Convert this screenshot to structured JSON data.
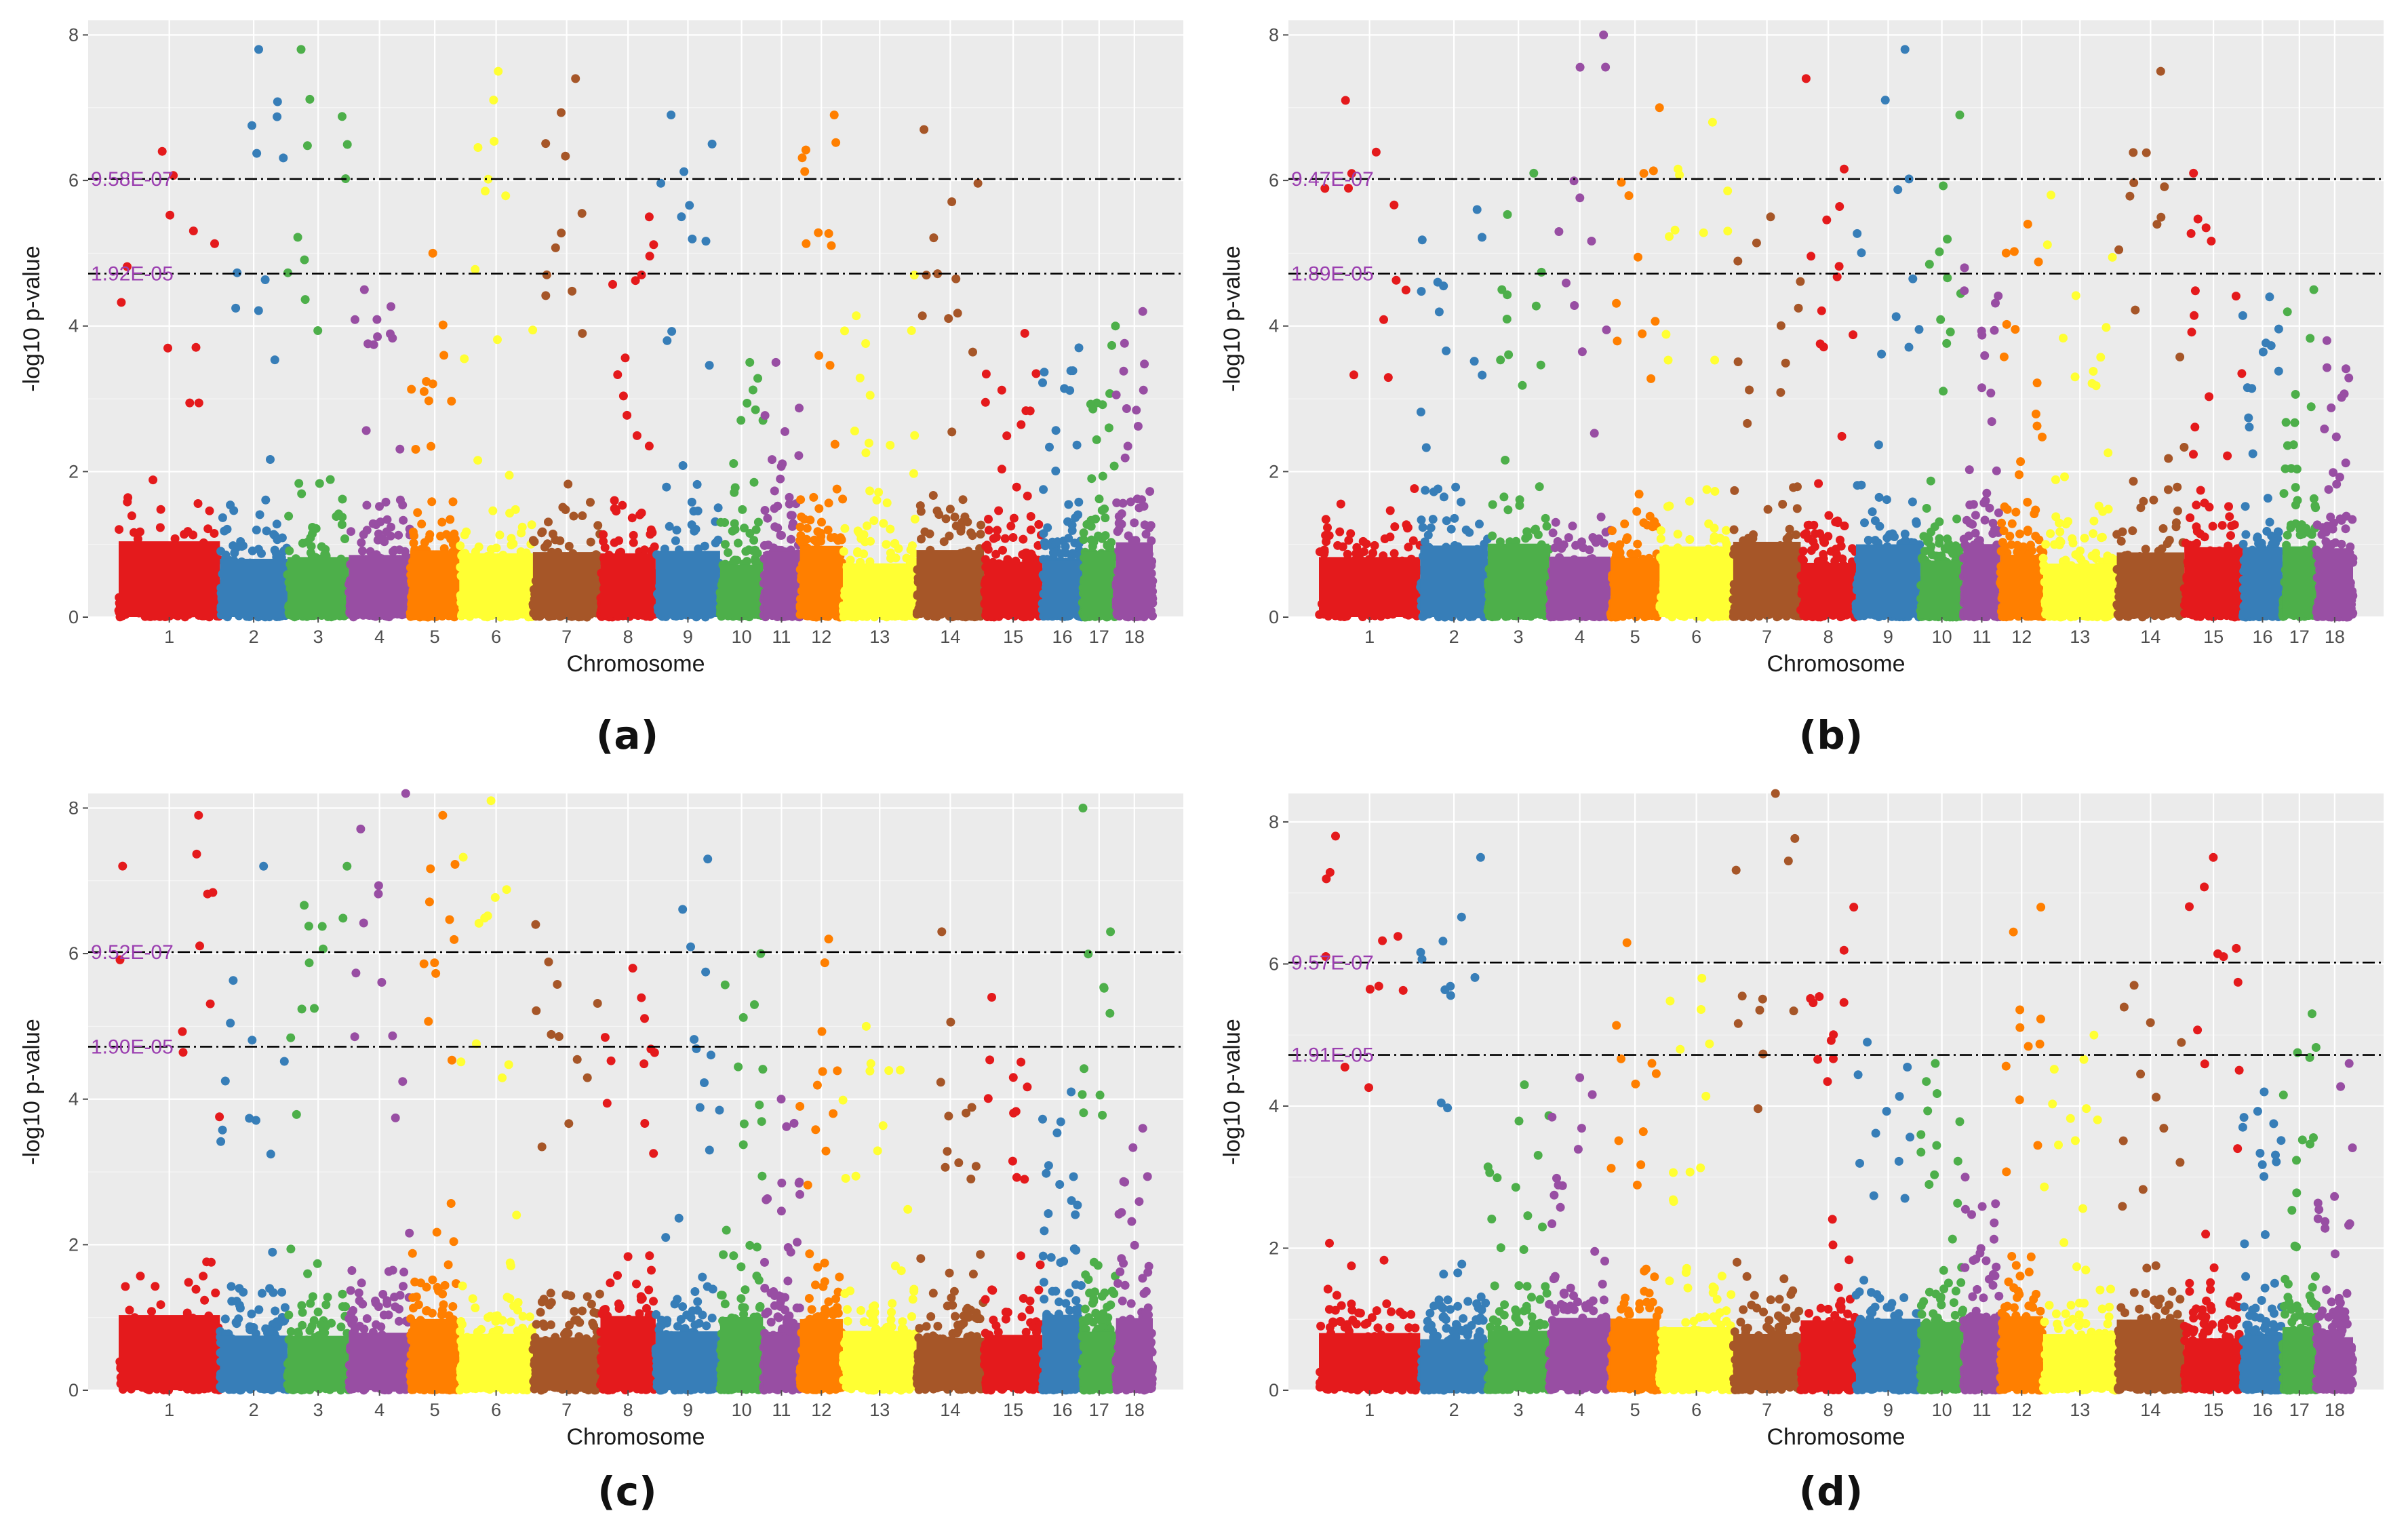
{
  "chart_data": [
    {
      "type": "scatter",
      "panel": "(a)",
      "xlabel": "Chromosome",
      "ylabel": "-log10 p-value",
      "ylim": [
        0,
        8.2
      ],
      "yticks": [
        0,
        2,
        4,
        6,
        8
      ],
      "chromosomes": [
        "1",
        "2",
        "3",
        "4",
        "5",
        "6",
        "7",
        "8",
        "9",
        "10",
        "11",
        "12",
        "13",
        "14",
        "15",
        "16",
        "17",
        "18"
      ],
      "chromosome_widths": [
        3.3,
        2.2,
        2.0,
        2.0,
        1.6,
        2.4,
        2.2,
        1.8,
        2.1,
        1.4,
        1.2,
        1.4,
        2.4,
        2.2,
        1.9,
        1.3,
        1.1,
        1.2
      ],
      "chromosome_max": [
        6.4,
        7.8,
        7.8,
        4.5,
        5.0,
        7.5,
        7.4,
        5.5,
        6.9,
        3.5,
        3.5,
        6.9,
        4.7,
        6.7,
        3.9,
        3.7,
        4.0,
        4.2
      ],
      "thresholds": [
        {
          "value": 6.02,
          "label": "9.58E-07"
        },
        {
          "value": 4.72,
          "label": "1.92E-05"
        }
      ],
      "points_per_chromosome": 260
    },
    {
      "type": "scatter",
      "panel": "(b)",
      "xlabel": "Chromosome",
      "ylabel": "-log10 p-value",
      "ylim": [
        0,
        8.2
      ],
      "yticks": [
        0,
        2,
        4,
        6,
        8
      ],
      "chromosomes": [
        "1",
        "2",
        "3",
        "4",
        "5",
        "6",
        "7",
        "8",
        "9",
        "10",
        "11",
        "12",
        "13",
        "14",
        "15",
        "16",
        "17",
        "18"
      ],
      "chromosome_widths": [
        3.3,
        2.2,
        2.0,
        2.0,
        1.6,
        2.4,
        2.2,
        1.8,
        2.1,
        1.4,
        1.2,
        1.4,
        2.4,
        2.2,
        1.9,
        1.3,
        1.1,
        1.2
      ],
      "chromosome_max": [
        7.1,
        5.6,
        6.1,
        8.0,
        7.0,
        6.8,
        5.5,
        7.4,
        7.8,
        6.9,
        4.8,
        5.4,
        5.8,
        7.5,
        6.1,
        4.4,
        4.5,
        3.8
      ],
      "thresholds": [
        {
          "value": 6.02,
          "label": "9.47E-07"
        },
        {
          "value": 4.72,
          "label": "1.89E-05"
        }
      ],
      "points_per_chromosome": 260
    },
    {
      "type": "scatter",
      "panel": "(c)",
      "xlabel": "Chromosome",
      "ylabel": "-log10 p-value",
      "ylim": [
        0,
        8.2
      ],
      "yticks": [
        0,
        2,
        4,
        6,
        8
      ],
      "chromosomes": [
        "1",
        "2",
        "3",
        "4",
        "5",
        "6",
        "7",
        "8",
        "9",
        "10",
        "11",
        "12",
        "13",
        "14",
        "15",
        "16",
        "17",
        "18"
      ],
      "chromosome_widths": [
        3.3,
        2.2,
        2.0,
        2.0,
        1.6,
        2.4,
        2.2,
        1.8,
        2.1,
        1.4,
        1.2,
        1.4,
        2.4,
        2.2,
        1.9,
        1.3,
        1.1,
        1.2
      ],
      "chromosome_max": [
        7.9,
        7.2,
        7.2,
        8.2,
        7.9,
        8.1,
        6.4,
        5.8,
        7.3,
        6.0,
        4.0,
        6.2,
        5.0,
        6.3,
        5.4,
        4.1,
        8.0,
        3.6
      ],
      "thresholds": [
        {
          "value": 6.02,
          "label": "9.52E-07"
        },
        {
          "value": 4.72,
          "label": "1.90E-05"
        }
      ],
      "points_per_chromosome": 260
    },
    {
      "type": "scatter",
      "panel": "(d)",
      "xlabel": "Chromosome",
      "ylabel": "-log10 p-value",
      "ylim": [
        0,
        8.4
      ],
      "yticks": [
        0,
        2,
        4,
        6,
        8
      ],
      "chromosomes": [
        "1",
        "2",
        "3",
        "4",
        "5",
        "6",
        "7",
        "8",
        "9",
        "10",
        "11",
        "12",
        "13",
        "14",
        "15",
        "16",
        "17",
        "18"
      ],
      "chromosome_widths": [
        3.3,
        2.2,
        2.0,
        2.0,
        1.6,
        2.4,
        2.2,
        1.8,
        2.1,
        1.4,
        1.2,
        1.4,
        2.4,
        2.2,
        1.9,
        1.3,
        1.1,
        1.2
      ],
      "chromosome_max": [
        7.8,
        7.5,
        4.3,
        4.4,
        6.3,
        5.8,
        8.4,
        6.8,
        4.9,
        4.6,
        3.0,
        6.8,
        5.0,
        5.7,
        7.5,
        4.2,
        5.3,
        4.6
      ],
      "thresholds": [
        {
          "value": 6.02,
          "label": "9.57E-07"
        },
        {
          "value": 4.72,
          "label": "1.91E-05"
        }
      ],
      "points_per_chromosome": 260
    }
  ],
  "palette": [
    "#e41a1c",
    "#377eb8",
    "#4daf4a",
    "#984ea3",
    "#ff7f00",
    "#ffff33",
    "#a65628"
  ],
  "captions": [
    "(a)",
    "(b)",
    "(c)",
    "(d)"
  ]
}
